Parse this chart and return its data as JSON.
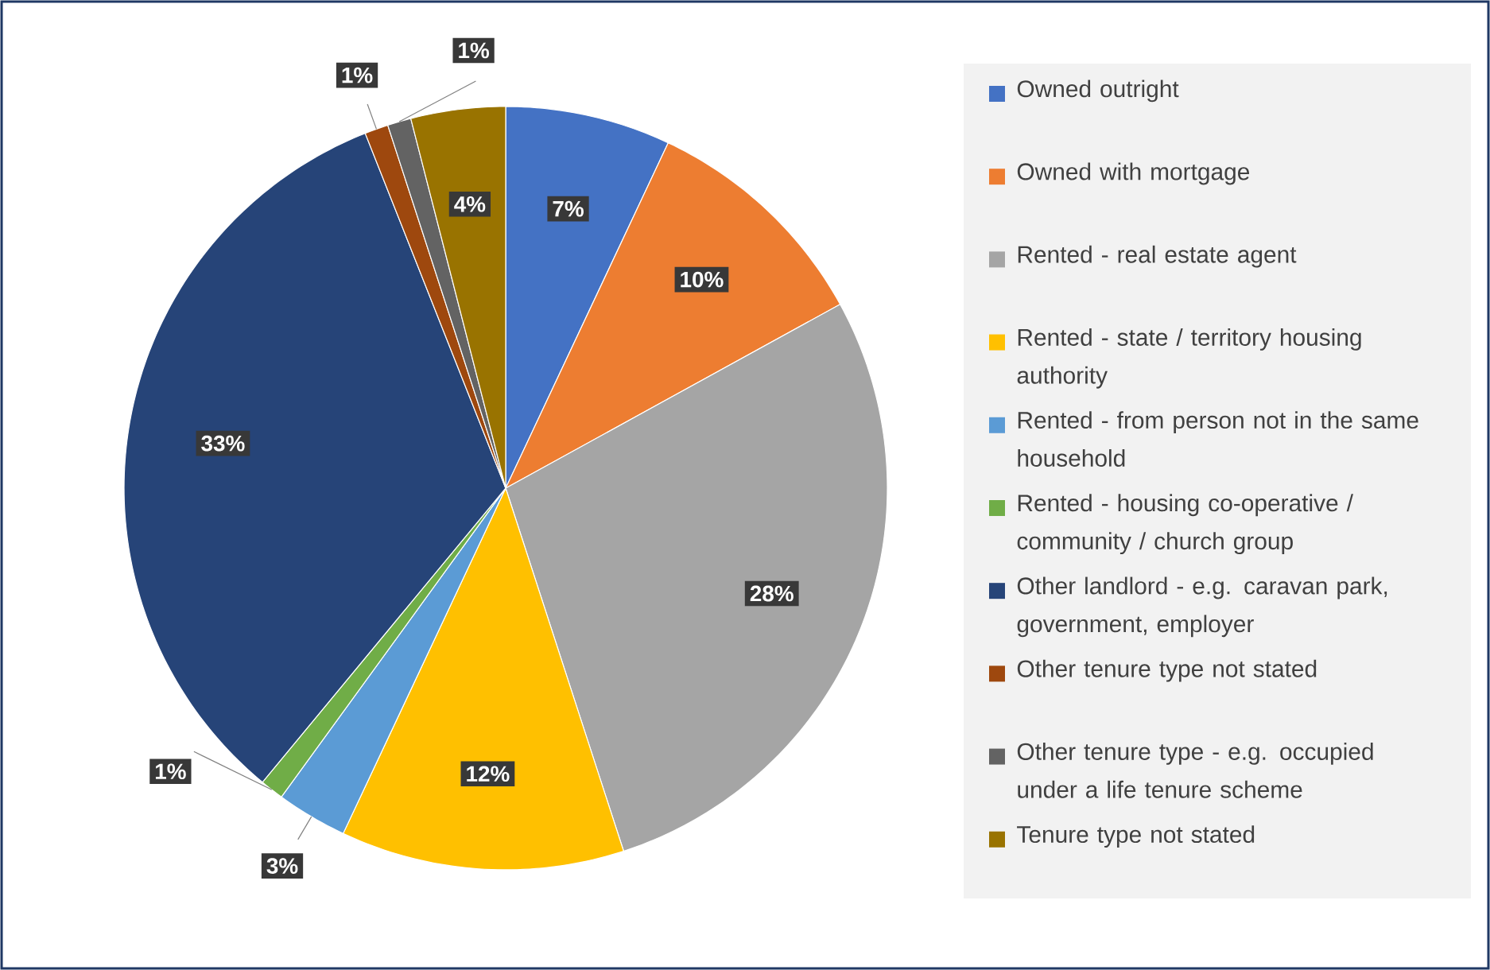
{
  "chart_data": {
    "type": "pie",
    "categories": [
      "Owned outright",
      "Owned with mortgage",
      "Rented - real estate agent",
      "Rented - state / territory housing authority",
      "Rented - from person not in the same household",
      "Rented - housing co-operative / community / church group",
      "Other landlord - e.g. caravan park, government, employer",
      "Other tenure type not stated",
      "Other tenure type - e.g. occupied under a life tenure scheme",
      "Tenure type not stated"
    ],
    "values": [
      7,
      10,
      28,
      12,
      3,
      1,
      33,
      1,
      1,
      4
    ],
    "value_labels": [
      "7%",
      "10%",
      "28%",
      "12%",
      "3%",
      "1%",
      "33%",
      "1%",
      "1%",
      "4%"
    ],
    "colors": [
      "#4472c4",
      "#ed7d31",
      "#a5a5a5",
      "#ffc000",
      "#5b9bd5",
      "#70ad47",
      "#264478",
      "#9e480e",
      "#636363",
      "#997300"
    ],
    "legend": "right"
  }
}
